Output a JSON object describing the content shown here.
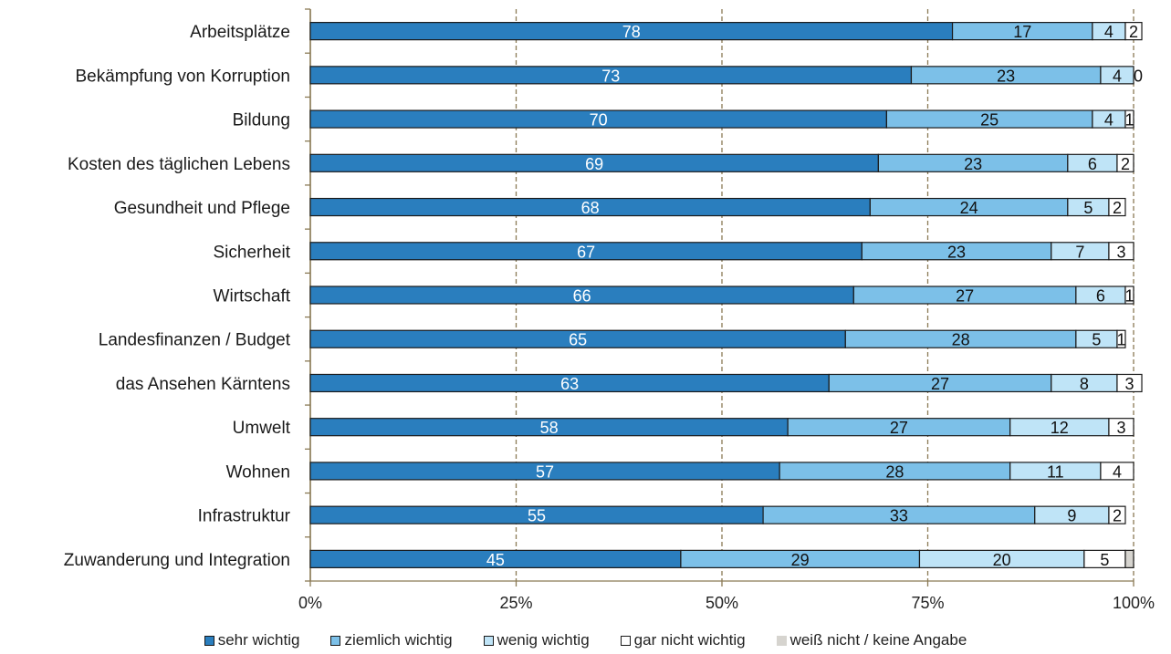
{
  "chart_data": {
    "type": "bar",
    "orientation": "horizontal",
    "stacked": true,
    "categories": [
      "Arbeitsplätze",
      "Bekämpfung von Korruption",
      "Bildung",
      "Kosten des täglichen Lebens",
      "Gesundheit und Pflege",
      "Sicherheit",
      "Wirtschaft",
      "Landesfinanzen / Budget",
      "das Ansehen Kärntens",
      "Umwelt",
      "Wohnen",
      "Infrastruktur",
      "Zuwanderung und Integration"
    ],
    "series": [
      {
        "name": "sehr wichtig",
        "color": "#2a7ebe",
        "values": [
          78,
          73,
          70,
          69,
          68,
          67,
          66,
          65,
          63,
          58,
          57,
          55,
          45
        ]
      },
      {
        "name": "ziemlich wichtig",
        "color": "#7cc0e8",
        "values": [
          17,
          23,
          25,
          23,
          24,
          23,
          27,
          28,
          27,
          27,
          28,
          33,
          29
        ]
      },
      {
        "name": "wenig wichtig",
        "color": "#bfe4f7",
        "values": [
          4,
          4,
          4,
          6,
          5,
          7,
          6,
          5,
          8,
          12,
          11,
          9,
          20
        ]
      },
      {
        "name": "gar nicht wichtig",
        "color": "#ffffff",
        "values": [
          2,
          0,
          1,
          2,
          2,
          3,
          1,
          1,
          3,
          3,
          4,
          2,
          5
        ]
      },
      {
        "name": "weiß nicht / keine Angabe",
        "color": "#d6d4cf",
        "values": [
          0,
          0,
          0,
          0,
          0,
          0,
          0,
          0,
          0,
          0,
          0,
          0,
          1
        ]
      }
    ],
    "xlim": [
      0,
      100
    ],
    "x_ticks": [
      "0%",
      "25%",
      "50%",
      "75%",
      "100%"
    ],
    "grid": true,
    "legend_position": "bottom"
  }
}
